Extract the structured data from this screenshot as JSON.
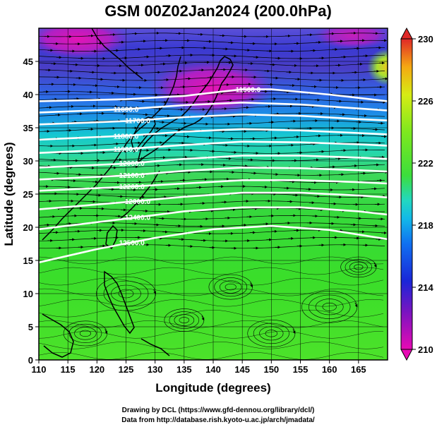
{
  "title": "GSM 00Z02Jan2024 (200.0hPa)",
  "credits": [
    "Drawing by DCL (https://www.gfd-dennou.org/library/dcl/)",
    "Data from http://database.rish.kyoto-u.ac.jp/arch/jmadata/"
  ],
  "chart_data": {
    "type": "heatmap",
    "xlabel": "Longitude (degrees)",
    "ylabel": "Latitude  (degrees)",
    "xlim": [
      110,
      170
    ],
    "ylim": [
      0,
      50
    ],
    "xticks": [
      110,
      115,
      120,
      125,
      130,
      135,
      140,
      145,
      150,
      155,
      160,
      165
    ],
    "yticks": [
      0,
      5,
      10,
      15,
      20,
      25,
      30,
      35,
      40,
      45
    ],
    "grid": true,
    "colorbar": {
      "min": 210,
      "max": 230,
      "ticks": [
        210,
        214,
        218,
        222,
        226,
        230
      ],
      "colors": [
        "#e80ab4",
        "#5a14c8",
        "#1428dc",
        "#10a0f0",
        "#22d8c8",
        "#3cde3c",
        "#7ee81e",
        "#d6ec14",
        "#f5a812",
        "#e02828"
      ],
      "position": "right"
    },
    "contours": [
      {
        "label": "11500.0",
        "points": [
          [
            110,
            39.0
          ],
          [
            125,
            39.3
          ],
          [
            135,
            39.8
          ],
          [
            145,
            40.8
          ],
          [
            150,
            40.8
          ],
          [
            160,
            40.0
          ],
          [
            170,
            39.0
          ]
        ]
      },
      {
        "label": "11600.0",
        "points": [
          [
            110,
            37.3
          ],
          [
            125,
            37.8
          ],
          [
            135,
            38.4
          ],
          [
            145,
            38.8
          ],
          [
            155,
            38.5
          ],
          [
            165,
            37.9
          ],
          [
            170,
            37.6
          ]
        ]
      },
      {
        "label": "11700.0",
        "points": [
          [
            110,
            35.5
          ],
          [
            125,
            36.0
          ],
          [
            135,
            36.6
          ],
          [
            145,
            37.0
          ],
          [
            155,
            36.8
          ],
          [
            165,
            36.3
          ],
          [
            170,
            36.1
          ]
        ]
      },
      {
        "label": "11800.0",
        "points": [
          [
            110,
            33.2
          ],
          [
            125,
            33.8
          ],
          [
            135,
            34.4
          ],
          [
            145,
            34.8
          ],
          [
            155,
            34.6
          ],
          [
            165,
            34.2
          ],
          [
            170,
            34.0
          ]
        ]
      },
      {
        "label": "11900.0",
        "points": [
          [
            110,
            31.2
          ],
          [
            125,
            31.8
          ],
          [
            135,
            32.4
          ],
          [
            145,
            32.9
          ],
          [
            155,
            32.8
          ],
          [
            165,
            32.5
          ],
          [
            170,
            32.3
          ]
        ]
      },
      {
        "label": "12000.0",
        "points": [
          [
            110,
            29.0
          ],
          [
            125,
            29.6
          ],
          [
            135,
            30.3
          ],
          [
            145,
            30.8
          ],
          [
            155,
            30.8
          ],
          [
            165,
            30.5
          ],
          [
            170,
            30.3
          ]
        ]
      },
      {
        "label": "12100.0",
        "points": [
          [
            110,
            27.2
          ],
          [
            125,
            27.8
          ],
          [
            135,
            28.5
          ],
          [
            145,
            29.0
          ],
          [
            155,
            28.9
          ],
          [
            165,
            28.6
          ],
          [
            170,
            28.4
          ]
        ]
      },
      {
        "label": "12200.0",
        "points": [
          [
            110,
            25.5
          ],
          [
            125,
            26.1
          ],
          [
            135,
            26.6
          ],
          [
            145,
            27.1
          ],
          [
            155,
            27.1
          ],
          [
            165,
            26.8
          ],
          [
            170,
            26.6
          ]
        ]
      },
      {
        "label": "12300.0",
        "points": [
          [
            110,
            22.7
          ],
          [
            125,
            23.8
          ],
          [
            135,
            24.6
          ],
          [
            145,
            25.2
          ],
          [
            155,
            25.2
          ],
          [
            165,
            24.8
          ],
          [
            170,
            24.5
          ]
        ]
      },
      {
        "label": "12400.0",
        "points": [
          [
            110,
            19.7
          ],
          [
            125,
            21.3
          ],
          [
            135,
            22.4
          ],
          [
            145,
            23.0
          ],
          [
            155,
            23.0
          ],
          [
            165,
            22.4
          ],
          [
            170,
            21.9
          ]
        ]
      },
      {
        "label": "12500.0",
        "points": [
          [
            110,
            14.7
          ],
          [
            120,
            16.7
          ],
          [
            130,
            18.4
          ],
          [
            140,
            19.7
          ],
          [
            150,
            20.2
          ],
          [
            160,
            19.6
          ],
          [
            170,
            18.2
          ]
        ]
      }
    ]
  }
}
